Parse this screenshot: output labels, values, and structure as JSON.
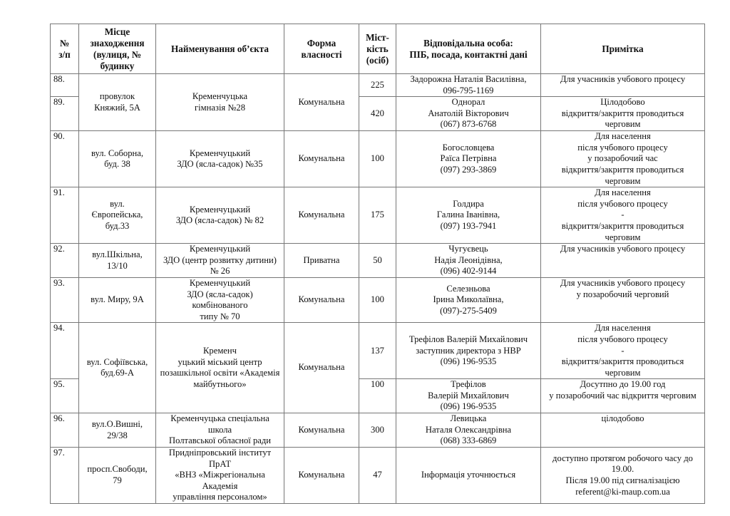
{
  "headers": {
    "num": "№\nз/п",
    "location": "Місце\nзнаходження\n(вулиця, №\nбудинку",
    "name": "Найменування об’єкта",
    "ownership": "Форма\nвласності",
    "capacity": "Міст-\nкість\n(осіб)",
    "responsible": "Відповідальна особа:\nПІБ, посада, контактні дані",
    "note": "Примітка"
  },
  "rows": [
    {
      "num": "88.",
      "location": "провулок\nКняжий, 5А",
      "name": "Кременчуцька\nгімназія №28",
      "ownership": "Комунальна",
      "capacity": "225",
      "responsible": "Задорожна Наталія Василівна,\n096-795-1169",
      "note": "Для учасників учбового процесу"
    },
    {
      "num": "89.",
      "capacity": "420",
      "responsible": "Однорал\nАнатолій Вікторович\n(067) 873-6768",
      "note": "Цілодобово\nвідкриття/закриття проводиться\nчерговим"
    },
    {
      "num": "90.",
      "location": "вул. Соборна,\nбуд. 38",
      "name": "Кременчуцький\nЗДО (ясла-садок) №35",
      "ownership": "Комунальна",
      "capacity": "100",
      "responsible": "Богословцева\nРаїса Петрівна\n(097) 293-3869",
      "note": "Для населення\nпісля учбового процесу\nу позаробочий час\nвідкриття/закриття проводиться\nчерговим"
    },
    {
      "num": "91.",
      "location": "вул.\nЄвропейська,\nбуд.33",
      "name": "Кременчуцький\nЗДО (ясла-садок) № 82",
      "ownership": "Комунальна",
      "capacity": "175",
      "responsible": "Голдира\nГалина Іванівна,\n(097) 193-7941",
      "note": "Для населення\nпісля учбового процесу\n-\nвідкриття/закриття проводиться\nчерговим"
    },
    {
      "num": "92.",
      "location": "вул.Шкільна,\n13/10",
      "name": "Кременчуцький\nЗДО (центр розвитку дитини)\n№ 26",
      "ownership": "Приватна",
      "capacity": "50",
      "responsible": "Чугуєвець\nНадія Леонідівна,\n(096) 402-9144",
      "note": "Для учасників  учбового процесу"
    },
    {
      "num": "93.",
      "location": "вул. Миру, 9А",
      "name": "Кременчуцький\nЗДО (ясла-садок) комбінованого\nтипу № 70",
      "ownership": "Комунальна",
      "capacity": "100",
      "responsible": "Селезньова\nІрина Миколаївна,\n(097)-275-5409",
      "note": "Для учасників учбового процесу\nу позаробочий черговий"
    },
    {
      "num": "94.",
      "location": "вул. Софіївська,\nбуд.69-А",
      "name": "Кременч\nуцький міський центр\nпозашкільної освіти «Академія\nмайбутнього»",
      "ownership": "Комунальна",
      "capacity": "137",
      "responsible": "Трефілов Валерій Михайлович\nзаступник директора з НВР\n(096) 196-9535",
      "note": "Для населення\nпісля учбового процесу\n-\nвідкриття/закриття проводиться\nчерговим"
    },
    {
      "num": "95.",
      "capacity": "100",
      "responsible": "Трефілов\nВалерій Михайлович\n(096) 196-9535",
      "note": "Досутпно до 19.00 год\nу позаробочий час відкриття черговим"
    },
    {
      "num": "96.",
      "location": "вул.О.Вишні,\n29/38",
      "name": "Кременчуцька спеціальна школа\nПолтавської обласної ради",
      "ownership": "Комунальна",
      "capacity": "300",
      "responsible": "Левицька\nНаталя Олександрівна\n(068) 333-6869",
      "note": "цілодобово"
    },
    {
      "num": "97.",
      "location": "просп.Свободи,\n79",
      "name": "Придніпровський інститут ПрАТ\n«ВНЗ «Міжрегіональна Академія\nуправління персоналом»",
      "ownership": "Комунальна",
      "capacity": "47",
      "responsible": "Інформація уточнюється",
      "note": "доступно протягом робочого часу до\n19.00.\nПісля 19.00 під сигналізацією\nreferent@ki-maup.com.ua"
    }
  ]
}
